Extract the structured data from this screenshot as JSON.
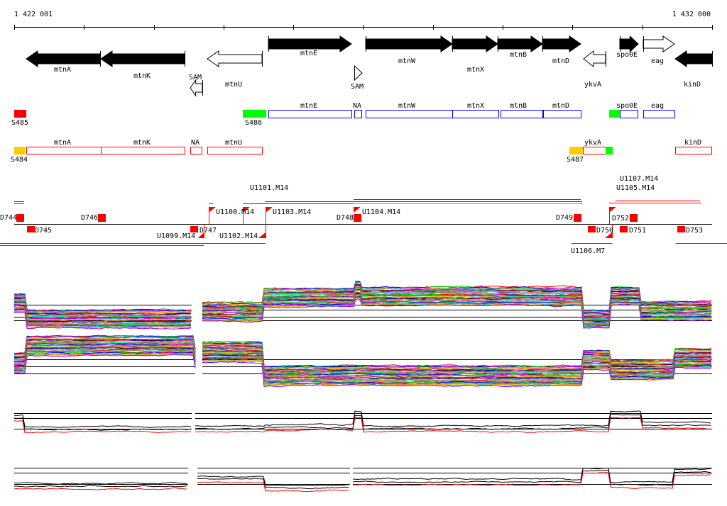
{
  "scale": {
    "start_label": "1 422 001",
    "end_label": "1 432 000"
  },
  "genes": {
    "top_row": [
      "mtnE",
      "mtnW",
      "mtnX",
      "mtnB",
      "mtnD",
      "spo0E",
      "eag"
    ],
    "bottom_row": [
      "mtnA",
      "mtnK",
      "mtnU",
      "ykvA",
      "kinD"
    ],
    "riboswitch": [
      "SAM",
      "SAM"
    ]
  },
  "operons_forward": {
    "segments": [
      "S485",
      "S486"
    ],
    "labels": [
      "mtnE",
      "NA",
      "mtnW",
      "mtnX",
      "mtnB",
      "mtnD",
      "spo0E",
      "eag"
    ]
  },
  "operons_reverse": {
    "segments": [
      "S484",
      "S487"
    ],
    "labels": [
      "mtnA",
      "mtnK",
      "NA",
      "mtnU",
      "ykvA",
      "kinD"
    ]
  },
  "features": [
    "D744",
    "D745",
    "D746",
    "U1099.M14",
    "D747",
    "U1100.M14",
    "U1101.M14",
    "U1102.M14",
    "U1103.M14",
    "D748",
    "U1104.M14",
    "D749",
    "U1106.M7",
    "D750",
    "D752",
    "U1105.M14",
    "U1107.M14",
    "D751",
    "D753"
  ],
  "colors": {
    "red": "#ff0000",
    "green": "#00ff00",
    "blue": "#0000ff",
    "orange": "#ffcc00",
    "black": "#000000"
  }
}
